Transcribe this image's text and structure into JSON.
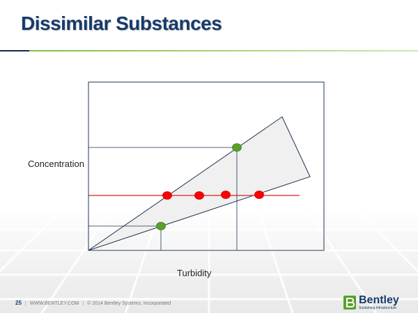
{
  "slide": {
    "title": "Dissimilar Substances",
    "y_axis_label": "Concentration",
    "x_axis_label": "Turbidity"
  },
  "footer": {
    "page_number": "25",
    "website": "WWW.BENTLEY.COM",
    "copyright": "© 2014 Bentley Systems, Incorporated"
  },
  "logo": {
    "wordmark": "Bentley",
    "tagline": "Sustaining Infrastructure"
  },
  "colors": {
    "title": "#163a6b",
    "accent_green": "#7fbf3f",
    "red_line": "#d9221c",
    "red_point": "#ff0000",
    "green_point": "#5aa02c",
    "wedge_fill": "#f0f0f0",
    "frame": "#1f3550"
  },
  "diagram": {
    "red_point_count": 4,
    "green_point_count": 2
  }
}
